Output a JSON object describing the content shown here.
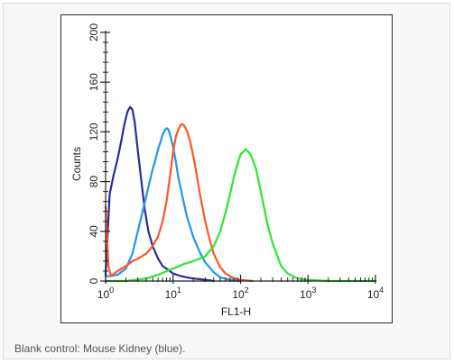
{
  "chart_data": {
    "type": "line",
    "xlabel": "FL1-H",
    "ylabel": "Counts",
    "x_scale": "log",
    "xlim": [
      1,
      10000
    ],
    "ylim": [
      0,
      200
    ],
    "x_ticks": [
      {
        "value": 1,
        "base": "10",
        "exp": "0"
      },
      {
        "value": 10,
        "base": "10",
        "exp": "1"
      },
      {
        "value": 100,
        "base": "10",
        "exp": "2"
      },
      {
        "value": 1000,
        "base": "10",
        "exp": "3"
      },
      {
        "value": 10000,
        "base": "10",
        "exp": "4"
      }
    ],
    "y_ticks": [
      0,
      40,
      80,
      120,
      160,
      200
    ],
    "grid": false,
    "legend": "none",
    "series": [
      {
        "color": "#2b2b9c",
        "x": [
          1,
          1.15,
          1.3,
          1.5,
          1.7,
          1.9,
          2.1,
          2.3,
          2.5,
          2.7,
          3,
          3.4,
          3.8,
          4.3,
          5,
          6,
          7,
          8.5,
          10,
          13,
          16,
          20,
          30,
          40
        ],
        "y": [
          5,
          70,
          84,
          98,
          112,
          126,
          136,
          140,
          138,
          128,
          105,
          80,
          58,
          40,
          28,
          18,
          12,
          9,
          6,
          4,
          3,
          2,
          1,
          0
        ]
      },
      {
        "color": "#2196f3",
        "x": [
          1,
          1.2,
          1.5,
          2,
          2.5,
          3,
          3.5,
          4,
          4.5,
          5,
          5.5,
          6,
          6.5,
          7,
          7.5,
          8,
          8.5,
          9,
          10,
          11,
          12,
          14,
          16,
          20,
          25,
          30,
          40,
          50,
          70,
          100
        ],
        "y": [
          4,
          4,
          5,
          10,
          22,
          40,
          55,
          68,
          80,
          90,
          98,
          106,
          112,
          118,
          121,
          123,
          122,
          118,
          108,
          96,
          83,
          66,
          52,
          35,
          23,
          15,
          7,
          3,
          1,
          0
        ]
      },
      {
        "color": "#ff5722",
        "x": [
          1,
          1.1,
          1.2,
          1.5,
          2,
          2.5,
          3,
          4,
          5,
          6,
          7,
          8,
          9,
          10,
          11,
          12,
          13,
          14,
          15,
          16,
          18,
          20,
          22,
          25,
          30,
          35,
          40,
          50,
          60,
          80,
          100,
          150
        ],
        "y": [
          60,
          12,
          4,
          8,
          12,
          16,
          18,
          22,
          28,
          36,
          48,
          64,
          84,
          104,
          116,
          122,
          126,
          126,
          124,
          121,
          112,
          100,
          88,
          70,
          48,
          33,
          22,
          11,
          6,
          2,
          1,
          0
        ]
      },
      {
        "color": "#2ee62e",
        "x": [
          1,
          2,
          4,
          6,
          8,
          10,
          15,
          20,
          30,
          40,
          50,
          60,
          70,
          80,
          90,
          100,
          110,
          120,
          130,
          140,
          150,
          170,
          200,
          250,
          300,
          400,
          500,
          700,
          1000,
          2000,
          10000
        ],
        "y": [
          0,
          0,
          2,
          5,
          8,
          10,
          14,
          16,
          20,
          28,
          40,
          55,
          70,
          84,
          94,
          102,
          104,
          106,
          104,
          102,
          98,
          90,
          72,
          46,
          30,
          12,
          6,
          2,
          1,
          0,
          0
        ]
      }
    ]
  },
  "caption": "Blank control: Mouse Kidney (blue)."
}
